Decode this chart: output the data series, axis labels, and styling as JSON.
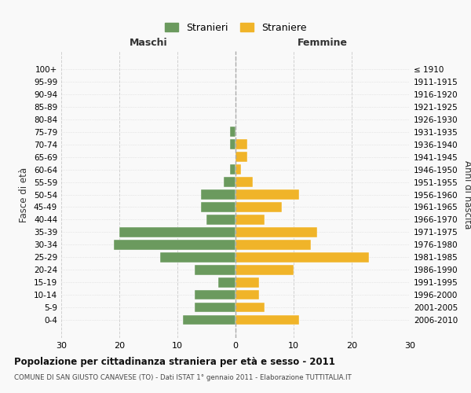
{
  "age_groups": [
    "0-4",
    "5-9",
    "10-14",
    "15-19",
    "20-24",
    "25-29",
    "30-34",
    "35-39",
    "40-44",
    "45-49",
    "50-54",
    "55-59",
    "60-64",
    "65-69",
    "70-74",
    "75-79",
    "80-84",
    "85-89",
    "90-94",
    "95-99",
    "100+"
  ],
  "birth_years": [
    "2006-2010",
    "2001-2005",
    "1996-2000",
    "1991-1995",
    "1986-1990",
    "1981-1985",
    "1976-1980",
    "1971-1975",
    "1966-1970",
    "1961-1965",
    "1956-1960",
    "1951-1955",
    "1946-1950",
    "1941-1945",
    "1936-1940",
    "1931-1935",
    "1926-1930",
    "1921-1925",
    "1916-1920",
    "1911-1915",
    "≤ 1910"
  ],
  "maschi": [
    9,
    7,
    7,
    3,
    7,
    13,
    21,
    20,
    5,
    6,
    6,
    2,
    1,
    0,
    1,
    1,
    0,
    0,
    0,
    0,
    0
  ],
  "femmine": [
    11,
    5,
    4,
    4,
    10,
    23,
    13,
    14,
    5,
    8,
    11,
    3,
    1,
    2,
    2,
    0,
    0,
    0,
    0,
    0,
    0
  ],
  "maschi_color": "#6b9a5e",
  "femmine_color": "#f0b429",
  "background_color": "#f9f9f9",
  "grid_color": "#cccccc",
  "title": "Popolazione per cittadinanza straniera per età e sesso - 2011",
  "subtitle": "COMUNE DI SAN GIUSTO CANAVESE (TO) - Dati ISTAT 1° gennaio 2011 - Elaborazione TUTTITALIA.IT",
  "ylabel_left": "Fasce di età",
  "ylabel_right": "Anni di nascita",
  "legend_maschi": "Stranieri",
  "legend_femmine": "Straniere",
  "xlim": 30,
  "label_maschi": "Maschi",
  "label_femmine": "Femmine"
}
